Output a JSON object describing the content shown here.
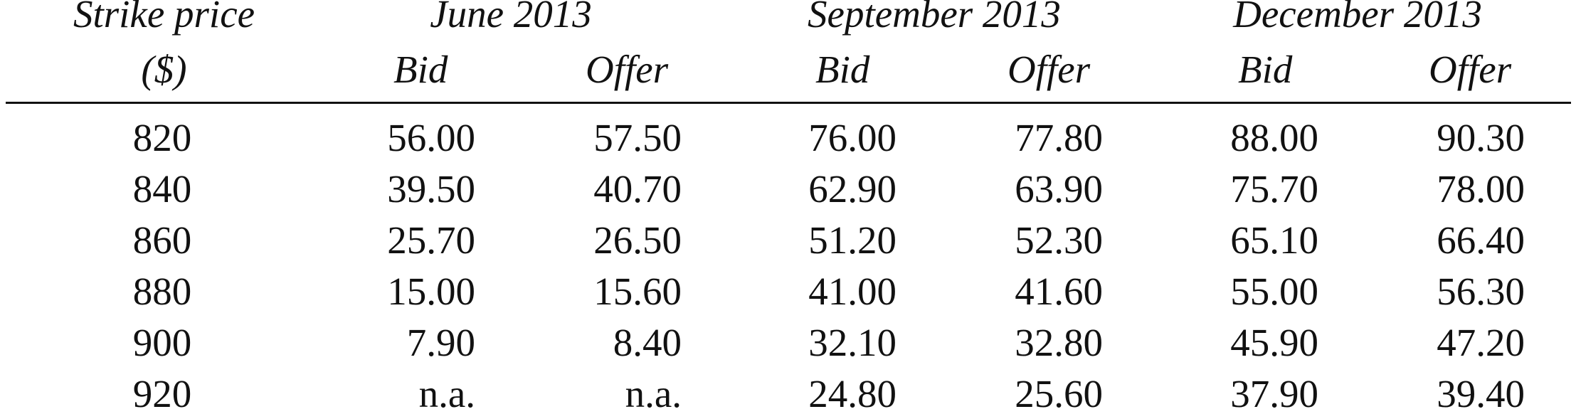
{
  "table": {
    "header": {
      "strike_line1": "Strike price",
      "strike_line2": "($)",
      "groups": [
        "June 2013",
        "September 2013",
        "December 2013"
      ],
      "bid_label": "Bid",
      "offer_label": "Offer"
    },
    "rows": [
      {
        "strike": "820",
        "cells": [
          "56.00",
          "57.50",
          "76.00",
          "77.80",
          "88.00",
          "90.30"
        ]
      },
      {
        "strike": "840",
        "cells": [
          "39.50",
          "40.70",
          "62.90",
          "63.90",
          "75.70",
          "78.00"
        ]
      },
      {
        "strike": "860",
        "cells": [
          "25.70",
          "26.50",
          "51.20",
          "52.30",
          "65.10",
          "66.40"
        ]
      },
      {
        "strike": "880",
        "cells": [
          "15.00",
          "15.60",
          "41.00",
          "41.60",
          "55.00",
          "56.30"
        ]
      },
      {
        "strike": "900",
        "cells": [
          "7.90",
          "8.40",
          "32.10",
          "32.80",
          "45.90",
          "47.20"
        ]
      },
      {
        "strike": "920",
        "cells": [
          "n.a.",
          "n.a.",
          "24.80",
          "25.60",
          "37.90",
          "39.40"
        ]
      }
    ]
  }
}
